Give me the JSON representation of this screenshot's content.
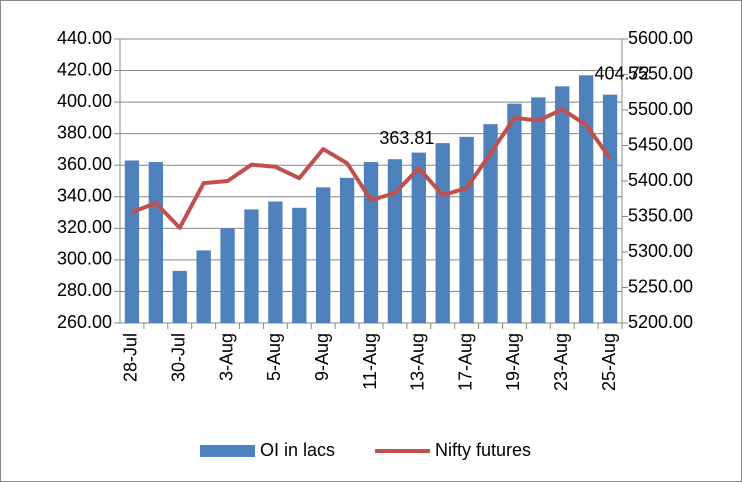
{
  "chart_data": {
    "type": "bar-line",
    "categories": [
      "28-Jul",
      null,
      "30-Jul",
      null,
      "3-Aug",
      null,
      "5-Aug",
      null,
      "9-Aug",
      null,
      "11-Aug",
      null,
      "13-Aug",
      null,
      "17-Aug",
      null,
      "19-Aug",
      null,
      "23-Aug",
      null,
      "25-Aug"
    ],
    "series": [
      {
        "name": "OI in lacs",
        "type": "bar",
        "axis": "y",
        "color": "#4f81bd",
        "values": [
          363,
          362,
          293,
          306,
          320,
          332,
          337,
          333,
          346,
          352,
          362,
          363.81,
          368,
          374,
          378,
          386,
          399,
          403,
          410,
          417,
          404.72
        ],
        "value_labels": [
          null,
          null,
          null,
          null,
          null,
          null,
          null,
          null,
          null,
          null,
          null,
          "363.81",
          null,
          null,
          null,
          null,
          null,
          null,
          null,
          null,
          "404.72"
        ]
      },
      {
        "name": "Nifty futures",
        "type": "line",
        "axis": "y2",
        "color": "#c0504d",
        "values": [
          5356,
          5369,
          5334,
          5397,
          5400,
          5423,
          5420,
          5404,
          5445,
          5425,
          5373,
          5383,
          5418,
          5380,
          5390,
          5439,
          5489,
          5485,
          5501,
          5479,
          5432
        ]
      }
    ],
    "ylim": [
      260,
      440
    ],
    "yticks": [
      {
        "value": 260,
        "label": "260.00"
      },
      {
        "value": 280,
        "label": "280.00"
      },
      {
        "value": 300,
        "label": "300.00"
      },
      {
        "value": 320,
        "label": "320.00"
      },
      {
        "value": 340,
        "label": "340.00"
      },
      {
        "value": 360,
        "label": "360.00"
      },
      {
        "value": 380,
        "label": "380.00"
      },
      {
        "value": 400,
        "label": "400.00"
      },
      {
        "value": 420,
        "label": "420.00"
      },
      {
        "value": 440,
        "label": "440.00"
      }
    ],
    "y2lim": [
      5200,
      5600
    ],
    "y2ticks": [
      {
        "value": 5200,
        "label": "5200.00"
      },
      {
        "value": 5250,
        "label": "5250.00"
      },
      {
        "value": 5300,
        "label": "5300.00"
      },
      {
        "value": 5350,
        "label": "5350.00"
      },
      {
        "value": 5400,
        "label": "5400.00"
      },
      {
        "value": 5450,
        "label": "5450.00"
      },
      {
        "value": 5500,
        "label": "5500.00"
      },
      {
        "value": 5550,
        "label": "5550.00"
      },
      {
        "value": 5600,
        "label": "5600.00"
      }
    ],
    "grid": true,
    "legend": "bottom"
  }
}
